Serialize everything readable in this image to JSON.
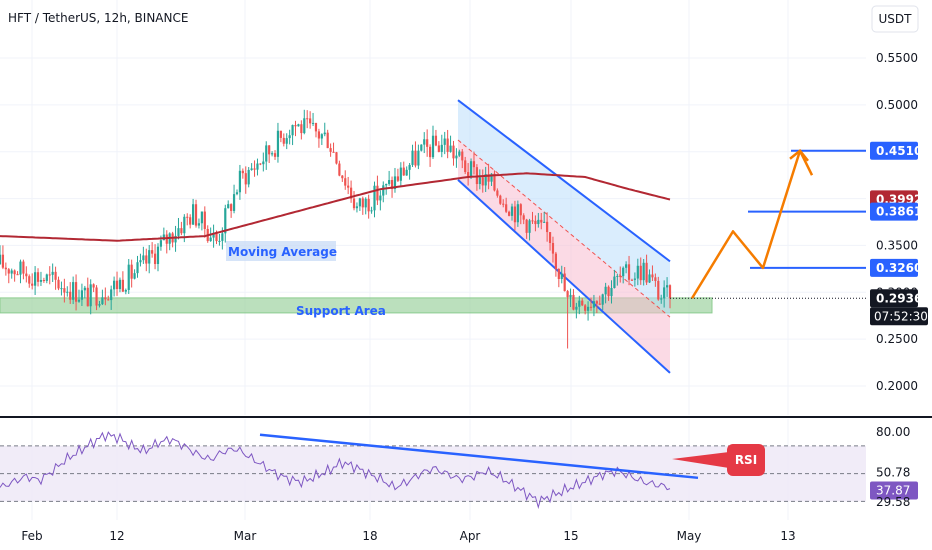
{
  "header": {
    "title": "HFT / TetherUS, 12h, BINANCE",
    "currency_button": "USDT"
  },
  "colors": {
    "up": "#26a69a",
    "down": "#ef5350",
    "ma": "#b22833",
    "channel": "#2962ff",
    "support_fill": "#a5d6a7",
    "projection": "#f57c00",
    "rsi_line": "#7e57c2",
    "rsi_trend": "#2962ff",
    "rsi_tag": "#e53945"
  },
  "annotations": {
    "moving_average_label": "Moving Average",
    "support_label": "Support Area",
    "rsi_label": "RSI"
  },
  "chart_data": [
    {
      "type": "candlestick",
      "title": "HFT / TetherUS, 12h, BINANCE",
      "x_ticks": [
        "Feb",
        "12",
        "Mar",
        "18",
        "Apr",
        "15",
        "May",
        "13"
      ],
      "y_ticks": [
        "0.5500",
        "0.5000",
        "0.4500",
        "0.4000",
        "0.3500",
        "0.3000",
        "0.2500",
        "0.2000"
      ],
      "ylim": [
        0.18,
        0.57
      ],
      "price_labels": [
        {
          "value": "0.4510",
          "color": "#2962ff"
        },
        {
          "value": "0.3992",
          "color": "#b22833"
        },
        {
          "value": "0.3861",
          "color": "#2962ff"
        },
        {
          "value": "0.3260",
          "color": "#2962ff"
        },
        {
          "value": "0.2936",
          "color": "#131722"
        }
      ],
      "countdown": "07:52:30",
      "current_price": 0.2936,
      "target_levels": [
        0.451,
        0.3861,
        0.326
      ],
      "support_zone": [
        0.278,
        0.294
      ],
      "channel_upper": [
        [
          0.505,
          "Apr"
        ],
        [
          0.333,
          "late Apr"
        ]
      ],
      "channel_lower": [
        [
          0.42,
          "Apr"
        ],
        [
          0.214,
          "late Apr"
        ]
      ],
      "ma_value": 0.3992,
      "price_path": [
        [
          0,
          0.33
        ],
        [
          20,
          0.31
        ],
        [
          30,
          0.295
        ],
        [
          38,
          0.305
        ],
        [
          48,
          0.325
        ],
        [
          58,
          0.36
        ],
        [
          66,
          0.385
        ],
        [
          74,
          0.355
        ],
        [
          82,
          0.42
        ],
        [
          92,
          0.45
        ],
        [
          100,
          0.48
        ],
        [
          112,
          0.465
        ],
        [
          122,
          0.39
        ],
        [
          132,
          0.41
        ],
        [
          144,
          0.45
        ],
        [
          152,
          0.46
        ],
        [
          160,
          0.43
        ],
        [
          168,
          0.415
        ],
        [
          178,
          0.38
        ],
        [
          188,
          0.36
        ],
        [
          194,
          0.29
        ],
        [
          202,
          0.292
        ],
        [
          212,
          0.315
        ],
        [
          220,
          0.325
        ],
        [
          226,
          0.295
        ]
      ],
      "ma_path": [
        [
          0,
          0.36
        ],
        [
          40,
          0.355
        ],
        [
          70,
          0.36
        ],
        [
          100,
          0.385
        ],
        [
          130,
          0.41
        ],
        [
          160,
          0.423
        ],
        [
          180,
          0.427
        ],
        [
          200,
          0.423
        ],
        [
          215,
          0.41
        ],
        [
          229,
          0.399
        ]
      ],
      "projection_path": [
        0.2936,
        0.365,
        0.326,
        0.451,
        0.425
      ]
    },
    {
      "type": "line",
      "title": "RSI",
      "y_ticks": [
        "80.00",
        "50.78",
        "37.87",
        "29.58"
      ],
      "ylim": [
        20,
        90
      ],
      "current_values": [
        50.78,
        37.87
      ],
      "levels": [
        70,
        50,
        30
      ],
      "trendline": [
        78,
        47
      ],
      "values": [
        40,
        44,
        48,
        45,
        52,
        60,
        66,
        72,
        78,
        76,
        70,
        66,
        72,
        75,
        70,
        64,
        60,
        66,
        68,
        62,
        56,
        50,
        46,
        44,
        48,
        52,
        58,
        55,
        50,
        46,
        40,
        44,
        50,
        54,
        50,
        46,
        48,
        52,
        48,
        42,
        36,
        30,
        34,
        38,
        42,
        46,
        50,
        52,
        48,
        44,
        42,
        40
      ]
    }
  ]
}
